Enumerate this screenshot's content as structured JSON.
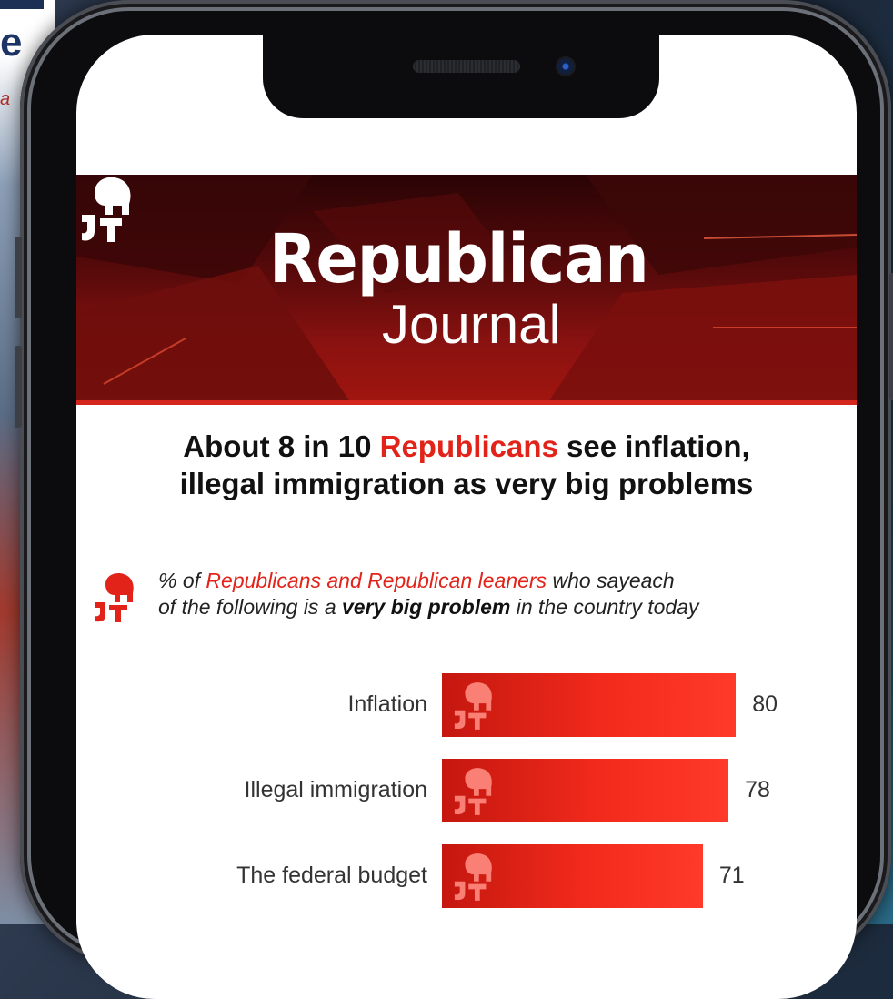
{
  "background": {
    "letter": "e",
    "subtitle": "a"
  },
  "logo": {
    "word1": "Republican",
    "word2": "Journal"
  },
  "headline": {
    "part1": "About 8 in 10 ",
    "highlight": "Republicans",
    "part2": " see inflation,",
    "line2": "illegal immigration as very big problems"
  },
  "note": {
    "part1": "% of ",
    "highlight": "Republicans and Republican leaners",
    "part2": " who sayeach",
    "part3": "of the following is a ",
    "bold": "very big problem",
    "part4": " in the country today"
  },
  "colors": {
    "accent": "#e2231a",
    "banner": "#7a0e0c"
  },
  "chart_data": {
    "type": "bar",
    "orientation": "horizontal",
    "categories": [
      "Inflation",
      "Illegal immigration",
      "The federal budget"
    ],
    "values": [
      80,
      78,
      71
    ],
    "xlim": [
      0,
      100
    ],
    "grid": false
  }
}
